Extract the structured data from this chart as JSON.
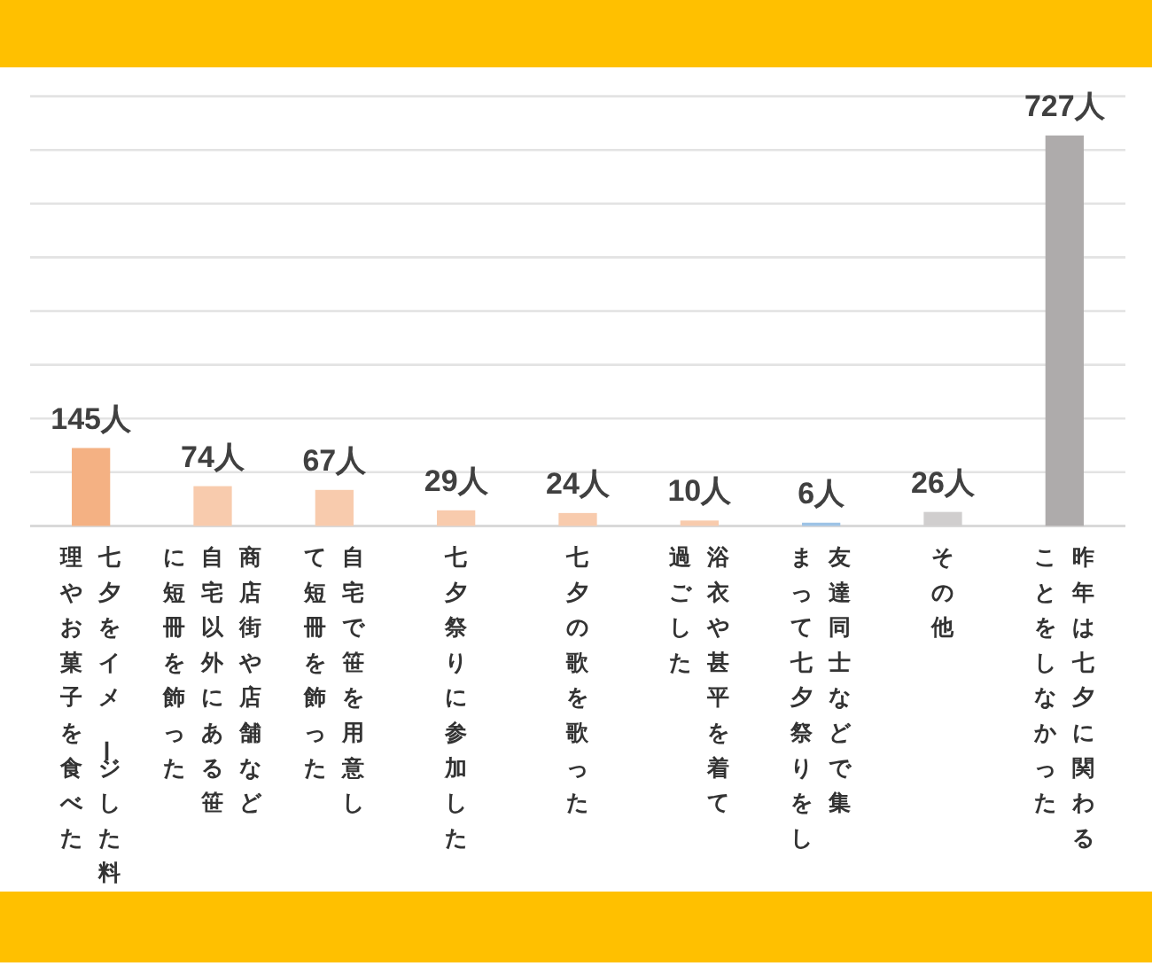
{
  "chart_data": {
    "type": "bar",
    "categories": [
      "七夕をイメージした料理やお菓子を食べた",
      "商店街や店舗など自宅以外にある笹に短冊を飾った",
      "自宅で笹を用意して短冊を飾った",
      "七夕祭りに参加した",
      "七夕の歌を歌った",
      "浴衣や甚平を着て過ごした",
      "友達同士などで集まって七夕祭りをし",
      "その他",
      "昨年は七夕に関わることをしなかった"
    ],
    "values": [
      145,
      74,
      67,
      29,
      24,
      10,
      6,
      26,
      727
    ],
    "colors": [
      "#f4b183",
      "#f8cbad",
      "#f8cbad",
      "#f8cbad",
      "#f8cbad",
      "#f8cbad",
      "#9dc3e6",
      "#d0cece",
      "#aeabab"
    ],
    "value_labels": [
      "145人",
      "74人",
      "67人",
      "29人",
      "24人",
      "10人",
      "6人",
      "26人",
      "727人"
    ],
    "ylim": [
      0,
      800
    ],
    "yticks": [
      {
        "value": 0,
        "label": null
      },
      {
        "value": 100,
        "label": null
      },
      {
        "value": 200,
        "label": null
      },
      {
        "value": 300,
        "label": null
      },
      {
        "value": 400,
        "label": null
      },
      {
        "value": 500,
        "label": null
      },
      {
        "value": 600,
        "label": null
      },
      {
        "value": 700,
        "label": null
      },
      {
        "value": 800,
        "label": null
      }
    ],
    "grid": "y",
    "tick_labels": "x"
  }
}
